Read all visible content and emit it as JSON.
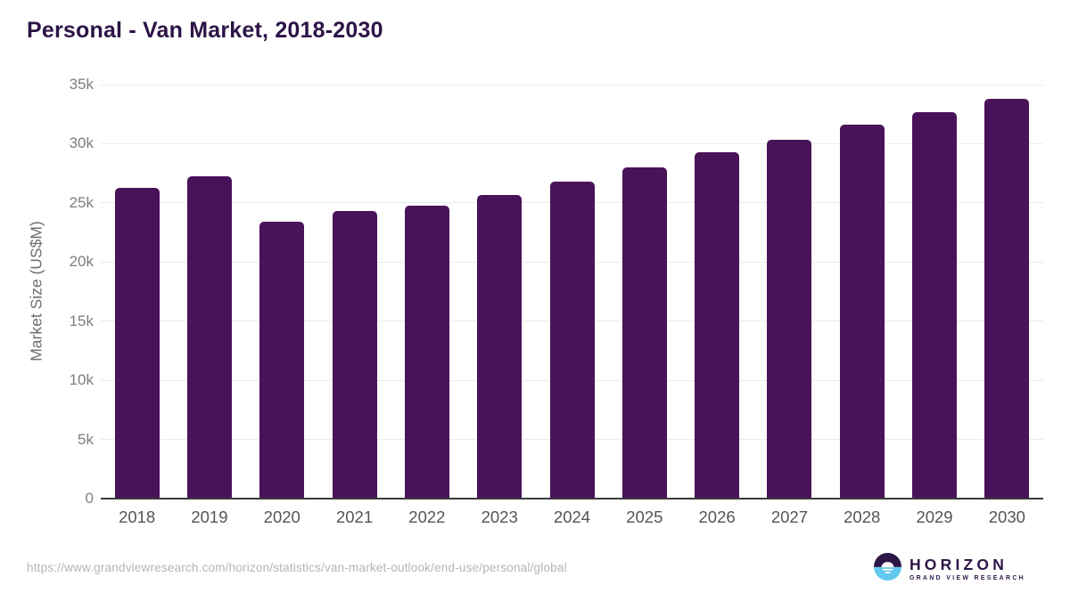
{
  "header": {
    "title": "Personal - Van Market, 2018-2030"
  },
  "chart_data": {
    "type": "bar",
    "title": "Personal - Van Market, 2018-2030",
    "xlabel": "",
    "ylabel": "Market Size (US$M)",
    "categories": [
      "2018",
      "2019",
      "2020",
      "2021",
      "2022",
      "2023",
      "2024",
      "2025",
      "2026",
      "2027",
      "2028",
      "2029",
      "2030"
    ],
    "values": [
      26300,
      27250,
      23400,
      24300,
      24800,
      25700,
      26800,
      28000,
      29250,
      30350,
      31600,
      32700,
      33800
    ],
    "unit": "US$M",
    "ylim": [
      0,
      35000
    ],
    "yticks": [
      {
        "value": 0,
        "label": "0"
      },
      {
        "value": 5000,
        "label": "5k"
      },
      {
        "value": 10000,
        "label": "10k"
      },
      {
        "value": 15000,
        "label": "15k"
      },
      {
        "value": 20000,
        "label": "20k"
      },
      {
        "value": 25000,
        "label": "25k"
      },
      {
        "value": 30000,
        "label": "30k"
      },
      {
        "value": 35000,
        "label": "35k"
      }
    ],
    "grid": true,
    "legend_position": "none",
    "bar_color": "#4a1259"
  },
  "footer": {
    "source_url": "https://www.grandviewresearch.com/horizon/statistics/van-market-outlook/end-use/personal/global",
    "logo": {
      "brand": "HORIZON",
      "subtitle": "GRAND VIEW RESEARCH",
      "icon": "horizon-sunset-circle-icon",
      "icon_sky_color": "#2e1647",
      "icon_water_color": "#62c9f0"
    }
  },
  "colors": {
    "title": "#2d1347",
    "bar": "#4a1259",
    "gridline": "#ebebeb",
    "axis_line": "#3a3a3a",
    "y_tick_label": "#7d7d7d",
    "x_tick_label": "#555555",
    "axis_title": "#6e6e6e",
    "source_url": "#b5b5b5"
  }
}
